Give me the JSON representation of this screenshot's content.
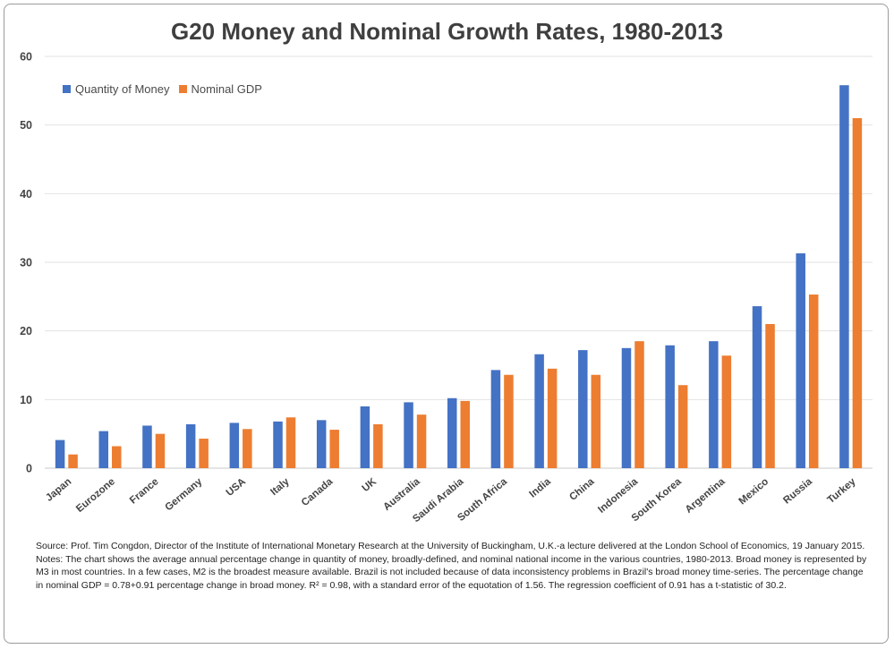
{
  "chart_data": {
    "type": "bar",
    "title": "G20 Money and Nominal Growth Rates, 1980-2013",
    "xlabel": "",
    "ylabel": "",
    "ylim": [
      0,
      60
    ],
    "yticks": [
      0,
      10,
      20,
      30,
      40,
      50,
      60
    ],
    "grid": true,
    "legend_position": "top-left",
    "categories": [
      "Japan",
      "Eurozone",
      "France",
      "Germany",
      "USA",
      "Italy",
      "Canada",
      "UK",
      "Australia",
      "Saudi Arabia",
      "South Africa",
      "India",
      "China",
      "Indonesia",
      "South Korea",
      "Argentina",
      "Mexico",
      "Russia",
      "Turkey"
    ],
    "series": [
      {
        "name": "Quantity of Money",
        "color": "#4472C4",
        "values": [
          4.1,
          5.4,
          6.2,
          6.4,
          6.6,
          6.8,
          7.0,
          9.0,
          9.6,
          10.2,
          14.3,
          16.6,
          17.2,
          17.5,
          17.9,
          18.5,
          23.6,
          31.3,
          55.8
        ]
      },
      {
        "name": "Nominal GDP",
        "color": "#ED7D31",
        "values": [
          2.0,
          3.2,
          5.0,
          4.3,
          5.7,
          7.4,
          5.6,
          6.4,
          7.8,
          9.8,
          13.6,
          14.5,
          13.6,
          18.5,
          12.1,
          16.4,
          21.0,
          25.3,
          51.0
        ]
      }
    ]
  },
  "notes": {
    "source": "Source: Prof. Tim Congdon, Director of the Institute of International Monetary Research at the University of Buckingham, U.K.-a lecture delivered at the London School of Economics, 19 January 2015.",
    "text": "Notes: The chart shows the average annual percentage change in quantity of money, broadly-defined, and nominal national income in the various countries, 1980-2013. Broad money is represented by M3 in most countries. In a few cases, M2 is the broadest measure available. Brazil is not included because of data inconsistency problems in Brazil's broad money time-series. The percentage change in nominal GDP = 0.78+0.91 percentage change in broad money. R² = 0.98, with a standard error of the equotation of 1.56. The regression coefficient of 0.91 has a t-statistic of 30.2."
  }
}
